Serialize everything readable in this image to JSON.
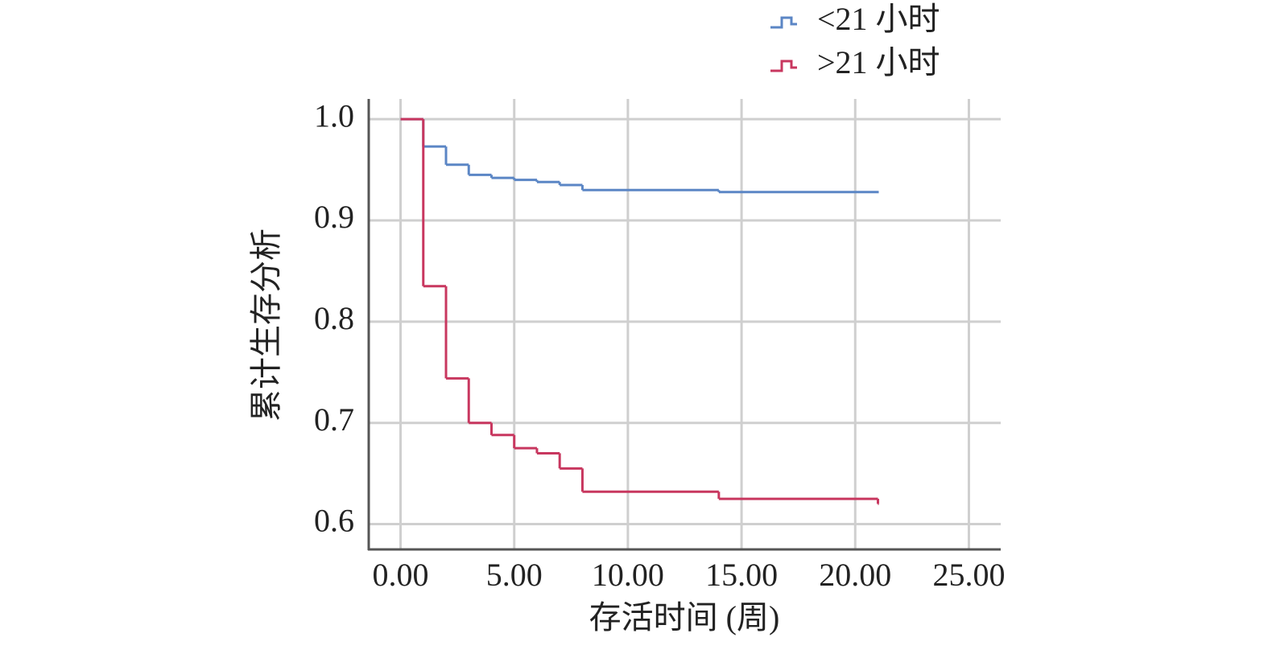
{
  "chart_data": {
    "type": "step",
    "x_label": "存活时间 (周)",
    "y_label": "累计生存分析",
    "xlim": [
      -1.4,
      26.4
    ],
    "ylim": [
      0.575,
      1.02
    ],
    "xticks": [
      {
        "value": 0,
        "label": "0.00"
      },
      {
        "value": 5,
        "label": "5.00"
      },
      {
        "value": 10,
        "label": "10.00"
      },
      {
        "value": 15,
        "label": "15.00"
      },
      {
        "value": 20,
        "label": "20.00"
      },
      {
        "value": 25,
        "label": "25.00"
      }
    ],
    "yticks": [
      {
        "value": 1,
        "label": "1.0"
      },
      0.9,
      0.8,
      0.7,
      0.6
    ],
    "grid": true,
    "legend": "top-right",
    "series": [
      {
        "name": "<21 小时",
        "color": "#5b86c5",
        "x": [
          0,
          1,
          2,
          3,
          4,
          5,
          6,
          7,
          8,
          14,
          21
        ],
        "values": [
          1.0,
          0.973,
          0.955,
          0.945,
          0.942,
          0.94,
          0.938,
          0.935,
          0.93,
          0.928,
          0.928
        ]
      },
      {
        "name": ">21 小时",
        "color": "#c8375f",
        "x": [
          0,
          1,
          2,
          3,
          4,
          5,
          6,
          7,
          8,
          14,
          21
        ],
        "values": [
          1.0,
          0.835,
          0.744,
          0.7,
          0.688,
          0.675,
          0.67,
          0.655,
          0.632,
          0.625,
          0.62
        ]
      }
    ]
  }
}
